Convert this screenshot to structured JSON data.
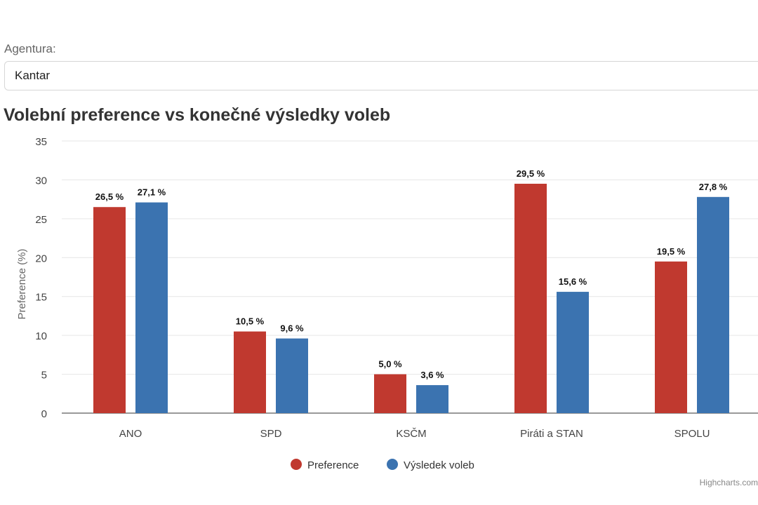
{
  "filter": {
    "label": "Agentura:",
    "selected": "Kantar"
  },
  "chart_title": "Volební preference vs konečné výsledky voleb",
  "credits": "Highcharts.com",
  "colors": {
    "preference": "#c0392f",
    "result": "#3b73b0",
    "grid": "#e6e6e6",
    "axis_text": "#444444"
  },
  "chart_data": {
    "type": "bar",
    "title": "Volební preference vs konečné výsledky voleb",
    "xlabel": "",
    "ylabel": "Preference (%)",
    "ylim": [
      0,
      35
    ],
    "yticks": [
      0,
      5,
      10,
      15,
      20,
      25,
      30,
      35
    ],
    "categories": [
      "ANO",
      "SPD",
      "KSČM",
      "Piráti a STAN",
      "SPOLU"
    ],
    "series": [
      {
        "name": "Preference",
        "values": [
          26.5,
          10.5,
          5.0,
          29.5,
          19.5
        ],
        "labels": [
          "26,5 %",
          "10,5 %",
          "5,0 %",
          "29,5 %",
          "19,5 %"
        ]
      },
      {
        "name": "Výsledek voleb",
        "values": [
          27.1,
          9.6,
          3.6,
          15.6,
          27.8
        ],
        "labels": [
          "27,1 %",
          "9,6 %",
          "3,6 %",
          "15,6 %",
          "27,8 %"
        ]
      }
    ],
    "grid": true,
    "legend": "bottom-center"
  }
}
